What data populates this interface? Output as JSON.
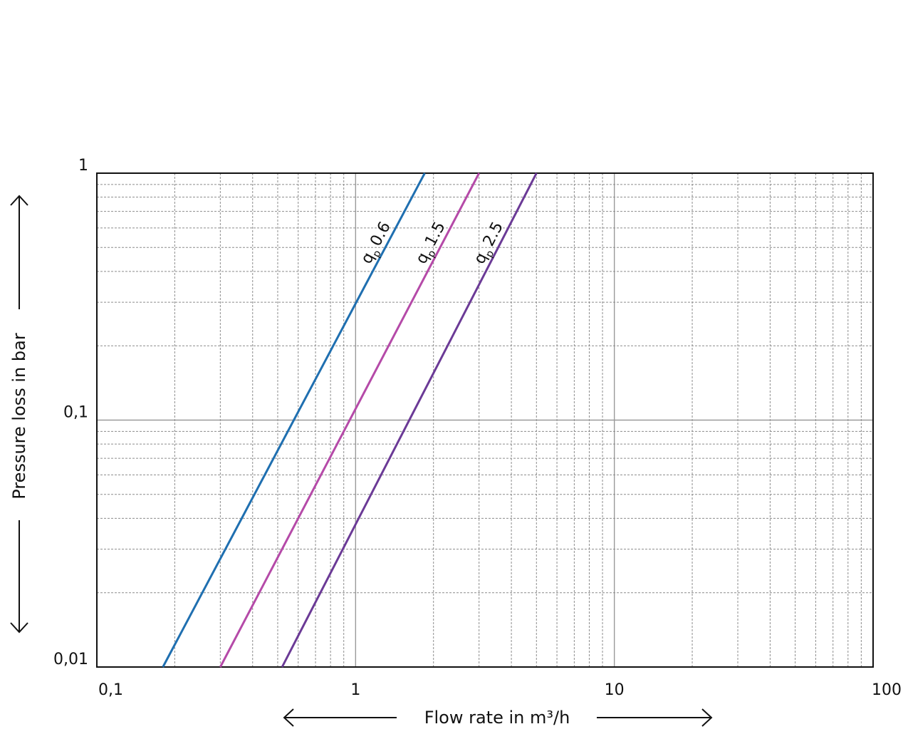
{
  "chart_data": {
    "type": "line",
    "title": "",
    "xlabel": "Flow rate in m³/h",
    "ylabel": "Pressure loss in bar",
    "x_scale": "log",
    "y_scale": "log",
    "xlim": [
      0.1,
      100
    ],
    "ylim": [
      0.01,
      1
    ],
    "x_ticks": [
      {
        "value": 0.1,
        "label": "0,1"
      },
      {
        "value": 1,
        "label": "1"
      },
      {
        "value": 10,
        "label": "10"
      },
      {
        "value": 100,
        "label": "100"
      }
    ],
    "y_ticks": [
      {
        "value": 1,
        "label": "1"
      },
      {
        "value": 0.1,
        "label": "0,1"
      },
      {
        "value": 0.01,
        "label": "0,01"
      }
    ],
    "grid": true,
    "series": [
      {
        "name": "qp 0.6",
        "label_prefix": "q",
        "label_sub": "p",
        "label_value": "0.6",
        "color": "#1f6fb0",
        "x": [
          0.18,
          1.85
        ],
        "y": [
          0.01,
          1
        ]
      },
      {
        "name": "qp 1.5",
        "label_prefix": "q",
        "label_sub": "p",
        "label_value": "1.5",
        "color": "#b54aa8",
        "x": [
          0.3,
          3.0
        ],
        "y": [
          0.01,
          1
        ]
      },
      {
        "name": "qp 2.5",
        "label_prefix": "q",
        "label_sub": "p",
        "label_value": "2.5",
        "color": "#6b3a96",
        "x": [
          0.52,
          5.0
        ],
        "y": [
          0.01,
          1
        ]
      }
    ]
  }
}
